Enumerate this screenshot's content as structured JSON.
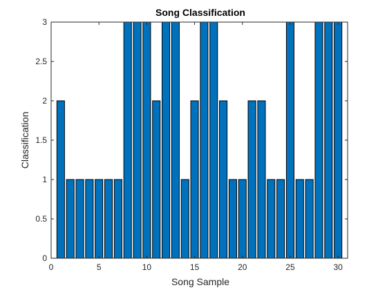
{
  "chart_data": {
    "type": "bar",
    "title": "Song Classification",
    "xlabel": "Song Sample",
    "ylabel": "Classification",
    "x": [
      1,
      2,
      3,
      4,
      5,
      6,
      7,
      8,
      9,
      10,
      11,
      12,
      13,
      14,
      15,
      16,
      17,
      18,
      19,
      20,
      21,
      22,
      23,
      24,
      25,
      26,
      27,
      28,
      29,
      30
    ],
    "values": [
      2,
      1,
      1,
      1,
      1,
      1,
      1,
      3,
      3,
      3,
      2,
      3,
      3,
      1,
      2,
      3,
      3,
      2,
      1,
      1,
      2,
      2,
      1,
      1,
      3,
      1,
      1,
      3,
      3,
      3
    ],
    "xlim": [
      0,
      31
    ],
    "ylim": [
      0,
      3
    ],
    "xticks": [
      0,
      5,
      10,
      15,
      20,
      25,
      30
    ],
    "yticks": [
      0,
      0.5,
      1,
      1.5,
      2,
      2.5,
      3
    ],
    "grid": false,
    "colors": {
      "bar": "#0072BD",
      "edge": "#000000"
    }
  }
}
